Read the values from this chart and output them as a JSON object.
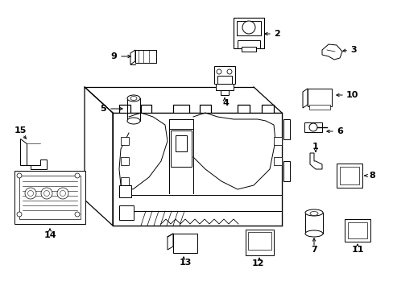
{
  "background_color": "#ffffff",
  "fig_width": 4.89,
  "fig_height": 3.6,
  "dpi": 100,
  "label_fontsize": 8,
  "arrow_color": "#000000",
  "line_color": "#000000",
  "lw_main": 0.9,
  "lw_part": 0.7
}
